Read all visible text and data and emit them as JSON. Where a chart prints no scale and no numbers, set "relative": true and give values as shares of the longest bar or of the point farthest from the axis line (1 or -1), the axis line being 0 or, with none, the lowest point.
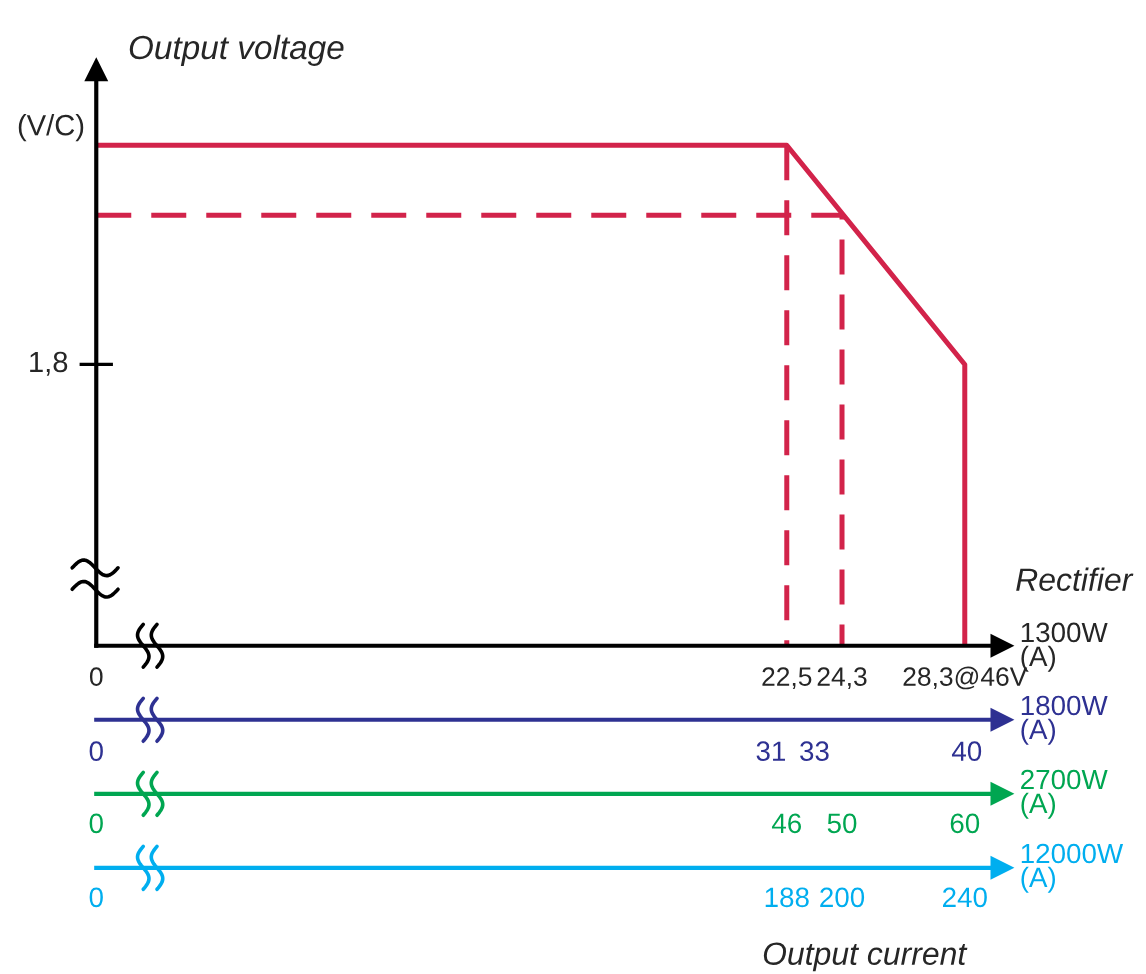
{
  "chart_data": {
    "type": "line",
    "title": "Output voltage",
    "ylabel": "(V/C)",
    "xlabel": "1300W\n(A)",
    "x2label": "1800W\n(A)",
    "relative": true,
    "xlim": [
      0,
      29.5
    ],
    "xticks": [
      0,
      {
        "value": 22.5,
        "label": "22,5"
      },
      {
        "value": 24.3,
        "label": "24,3"
      },
      {
        "value": 28.3,
        "label": "28,3@46V"
      }
    ],
    "x2lim": [
      0,
      41.6
    ],
    "x2ticks": [
      0,
      31,
      33,
      40
    ],
    "series": [
      {
        "color": "#d2234a",
        "x": [
          0,
          22.5,
          28.3,
          28.3
        ],
        "values": [
          1,
          1,
          0.562,
          0
        ],
        "line_style": "solid"
      },
      {
        "color": "#d2234a",
        "x": [
          0,
          24.3,
          24.3
        ],
        "values": [
          0.86,
          0.86,
          0
        ],
        "line_style": "dashed"
      },
      {
        "color": "#d2234a",
        "x": [
          22.5,
          22.5
        ],
        "values": [
          1,
          0
        ],
        "line_style": "dashed"
      }
    ],
    "annotations": [
      "1,8",
      "Rectifier",
      "Output current",
      "2700W\n(A)",
      "0",
      "46",
      "50",
      "60",
      "12000W\n(A)",
      "0",
      "188",
      "200",
      "240"
    ],
    "legend": false,
    "grid": false,
    "marker": "none"
  }
}
